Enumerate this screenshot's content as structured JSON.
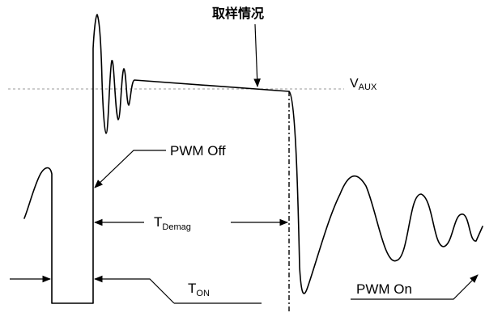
{
  "labels": {
    "sampling": "取样情况",
    "vaux_main": "V",
    "vaux_sub": "AUX",
    "pwm_off": "PWM Off",
    "tdemag_main": "T",
    "tdemag_sub": "Demag",
    "ton_main": "T",
    "ton_sub": "ON",
    "pwm_on": "PWM On"
  }
}
